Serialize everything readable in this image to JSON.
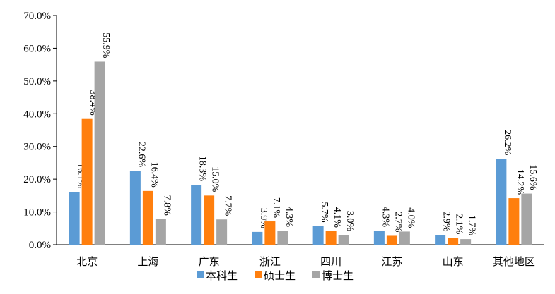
{
  "chart_data": {
    "type": "bar",
    "categories": [
      "北京",
      "上海",
      "广东",
      "浙江",
      "四川",
      "江苏",
      "山东",
      "其他地区"
    ],
    "series": [
      {
        "name": "本科生",
        "color": "#5B9BD5",
        "values": [
          16.1,
          22.6,
          18.3,
          3.9,
          5.7,
          4.3,
          2.9,
          26.2
        ]
      },
      {
        "name": "硕士生",
        "color": "#FF7F0E",
        "values": [
          38.4,
          16.4,
          15.0,
          7.1,
          4.1,
          2.7,
          2.1,
          14.2
        ]
      },
      {
        "name": "博士生",
        "color": "#A5A5A5",
        "values": [
          55.9,
          7.8,
          7.7,
          4.3,
          3.0,
          4.0,
          1.7,
          15.6
        ]
      }
    ],
    "ylim": [
      0,
      70
    ],
    "yticks": [
      "0.0%",
      "10.0%",
      "20.0%",
      "30.0%",
      "40.0%",
      "50.0%",
      "60.0%",
      "70.0%"
    ],
    "grid": false,
    "legend": "bottom"
  }
}
